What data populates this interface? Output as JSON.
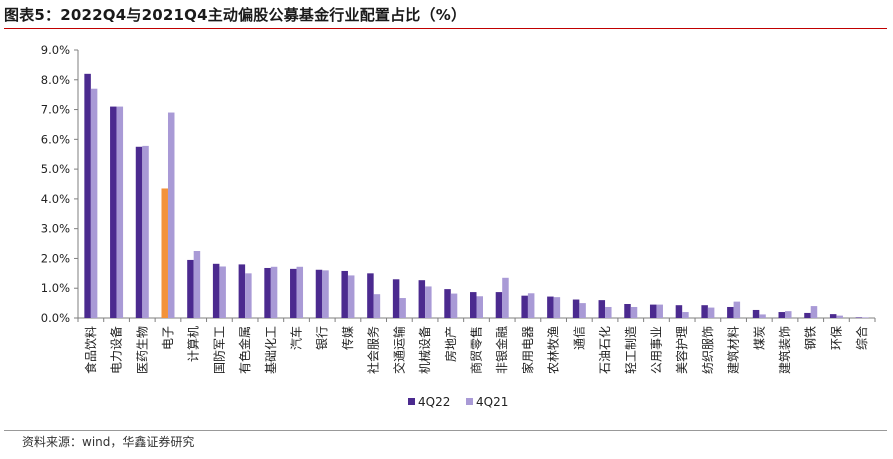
{
  "title": "图表5：2022Q4与2021Q4主动偏股公募基金行业配置占比（%）",
  "source": "资料来源：wind，华鑫证券研究",
  "colors": {
    "primary": "#4b2a8f",
    "secondary": "#a99ad6",
    "highlight": "#f3923a",
    "axis": "#7f7f7f",
    "title_rule": "#c00000"
  },
  "chart_data": {
    "type": "bar",
    "title": "图表5：2022Q4与2021Q4主动偏股公募基金行业配置占比（%）",
    "xlabel": "",
    "ylabel": "",
    "ylim": [
      0,
      9
    ],
    "yticks": [
      "0.0%",
      "1.0%",
      "2.0%",
      "3.0%",
      "4.0%",
      "5.0%",
      "6.0%",
      "7.0%",
      "8.0%",
      "9.0%"
    ],
    "grid": false,
    "legend": "bottom-center",
    "highlight_category": "电子",
    "categories": [
      "食品饮料",
      "电力设备",
      "医药生物",
      "电子",
      "计算机",
      "国防军工",
      "有色金属",
      "基础化工",
      "汽车",
      "银行",
      "传媒",
      "社会服务",
      "交通运输",
      "机械设备",
      "房地产",
      "商贸零售",
      "非银金融",
      "家用电器",
      "农林牧渔",
      "通信",
      "石油石化",
      "轻工制造",
      "公用事业",
      "美容护理",
      "纺织服饰",
      "建筑材料",
      "煤炭",
      "建筑装饰",
      "钢铁",
      "环保",
      "综合"
    ],
    "series": [
      {
        "name": "4Q22",
        "values": [
          8.2,
          7.1,
          5.75,
          4.35,
          1.95,
          1.82,
          1.8,
          1.68,
          1.65,
          1.62,
          1.58,
          1.5,
          1.3,
          1.27,
          0.97,
          0.87,
          0.87,
          0.75,
          0.72,
          0.62,
          0.6,
          0.47,
          0.45,
          0.43,
          0.43,
          0.37,
          0.27,
          0.2,
          0.17,
          0.13,
          0.02
        ]
      },
      {
        "name": "4Q21",
        "values": [
          7.7,
          7.1,
          5.78,
          6.9,
          2.25,
          1.73,
          1.5,
          1.72,
          1.72,
          1.6,
          1.43,
          0.8,
          0.67,
          1.06,
          0.82,
          0.73,
          1.35,
          0.83,
          0.7,
          0.5,
          0.37,
          0.37,
          0.45,
          0.2,
          0.35,
          0.55,
          0.12,
          0.23,
          0.4,
          0.08,
          0.02
        ]
      }
    ]
  }
}
